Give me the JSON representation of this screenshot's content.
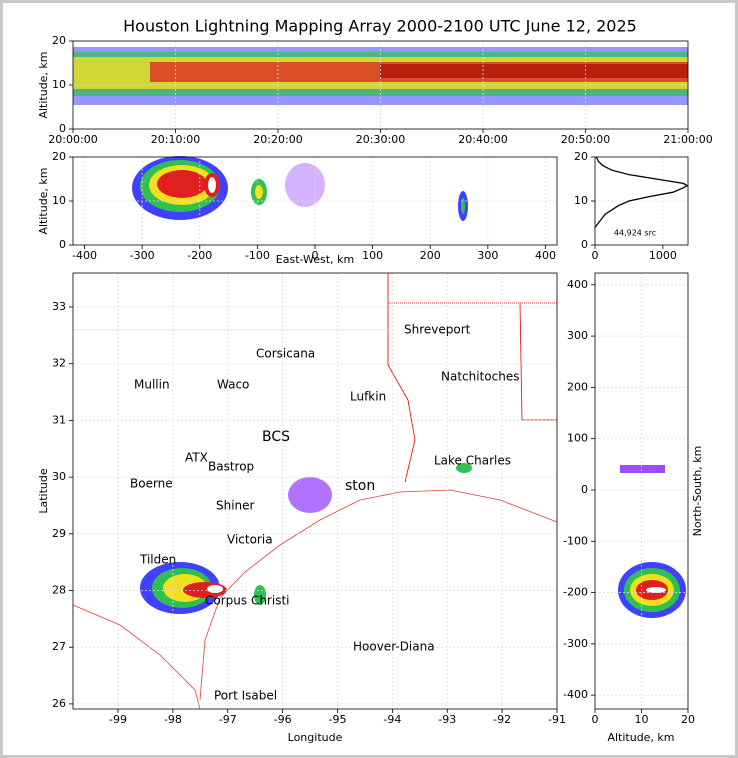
{
  "chart_data": [
    {
      "type": "density",
      "title": "Houston Lightning Mapping Array 2000-2100 UTC June 12, 2025",
      "ylabel": "Altitude, km",
      "xlim": [
        0,
        60
      ],
      "xticks": [
        {
          "value": 0,
          "label": "20:00:00"
        },
        {
          "value": 10,
          "label": "20:10:00"
        },
        {
          "value": 20,
          "label": "20:20:00"
        },
        {
          "value": 30,
          "label": "20:30:00"
        },
        {
          "value": 40,
          "label": "20:40:00"
        },
        {
          "value": 50,
          "label": "20:50:00"
        },
        {
          "value": 60,
          "label": "21:00:00"
        }
      ],
      "ylim": [
        0,
        20
      ],
      "yticks": [
        0,
        10,
        20
      ],
      "grid": true
    },
    {
      "type": "density",
      "xlabel": "East-West, km",
      "ylabel": "Altitude, km",
      "xlim": [
        -420,
        420
      ],
      "xticks": [
        -400,
        -300,
        -200,
        -100,
        0,
        100,
        200,
        300,
        400
      ],
      "ylim": [
        0,
        20
      ],
      "yticks": [
        0,
        10,
        20
      ],
      "grid": true
    },
    {
      "type": "line",
      "annotation": "44,924 src",
      "color": "#000000",
      "x": [
        0,
        50,
        100,
        150,
        250,
        350,
        500,
        800,
        1150,
        1300,
        1360,
        1300,
        900,
        500,
        250,
        120,
        50,
        20
      ],
      "y": [
        4,
        5,
        6,
        7,
        8,
        9,
        10,
        11,
        12,
        13,
        13.5,
        14,
        15,
        16,
        17,
        18,
        19,
        20
      ],
      "xlim": [
        0,
        1370
      ],
      "xticks": [
        0,
        1000
      ],
      "ylim": [
        0,
        20
      ],
      "yticks": [
        0,
        10,
        20
      ],
      "grid": true
    },
    {
      "type": "map",
      "xlabel": "Longitude",
      "ylabel": "Latitude",
      "xlim": [
        -99.82,
        -91
      ],
      "xticks": [
        -99,
        -98,
        -97,
        -96,
        -95,
        -94,
        -93,
        -92,
        -91
      ],
      "ylim": [
        25.91,
        33.6
      ],
      "yticks": [
        26,
        27,
        28,
        29,
        30,
        31,
        32,
        33
      ],
      "annotations": [
        {
          "text": "Shreveport",
          "color": "#000000"
        },
        {
          "text": "Corsicana",
          "color": "#000000"
        },
        {
          "text": "Mullin",
          "color": "#f08050"
        },
        {
          "text": "Waco",
          "color": "#000000"
        },
        {
          "text": "Natchitoches",
          "color": "#000000"
        },
        {
          "text": "Lufkin",
          "color": "#000000"
        },
        {
          "text": "BCS",
          "color": "#800000"
        },
        {
          "text": "ATX",
          "color": "#f08050"
        },
        {
          "text": "Bastrop",
          "color": "#000000"
        },
        {
          "text": "Lake Charles",
          "color": "#000000"
        },
        {
          "text": "Boerne",
          "color": "#000000"
        },
        {
          "text": "ston",
          "color": "#e0a000"
        },
        {
          "text": "Shiner",
          "color": "#000000"
        },
        {
          "text": "Victoria",
          "color": "#000000"
        },
        {
          "text": "Tilden",
          "color": "#000000"
        },
        {
          "text": "Corpus Christi",
          "color": "#000000"
        },
        {
          "text": "Hoover-Diana",
          "color": "#0000dd"
        },
        {
          "text": "Port Isabel",
          "color": "#000000"
        }
      ],
      "grid": true
    },
    {
      "type": "density",
      "xlabel": "Altitude, km",
      "ylabel": "North-South, km",
      "xlim": [
        0,
        20
      ],
      "xticks": [
        0,
        10,
        20
      ],
      "ylim": [
        -427,
        423
      ],
      "yticks": [
        -400,
        -300,
        -200,
        -100,
        0,
        100,
        200,
        300,
        400
      ],
      "grid": true
    }
  ]
}
